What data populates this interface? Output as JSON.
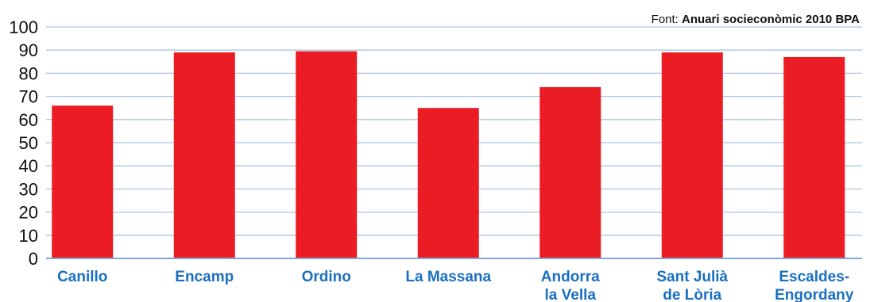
{
  "source": {
    "prefix": "Font: ",
    "name": "Anuari socieconòmic 2010 BPA"
  },
  "colors": {
    "bar": "#ec1c24",
    "grid": "#a9c4e4",
    "baseline": "#7fa6d6",
    "category_label": "#1a6fc0",
    "tick_label": "#111111"
  },
  "chart_data": {
    "type": "bar",
    "title": "",
    "xlabel": "",
    "ylabel": "",
    "ylim": [
      0,
      100
    ],
    "yticks": [
      0,
      10,
      20,
      30,
      40,
      50,
      60,
      70,
      80,
      90,
      100
    ],
    "grid": true,
    "categories": [
      [
        "Canillo"
      ],
      [
        "Encamp"
      ],
      [
        "Ordino"
      ],
      [
        "La Massana"
      ],
      [
        "Andorra",
        "la Vella"
      ],
      [
        "Sant Julià",
        "de Lòria"
      ],
      [
        "Escaldes-",
        "Engordany"
      ]
    ],
    "values": [
      66,
      89,
      89.5,
      65,
      74,
      89,
      87
    ]
  }
}
